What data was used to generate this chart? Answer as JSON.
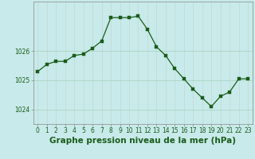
{
  "x": [
    0,
    1,
    2,
    3,
    4,
    5,
    6,
    7,
    8,
    9,
    10,
    11,
    12,
    13,
    14,
    15,
    16,
    17,
    18,
    19,
    20,
    21,
    22,
    23
  ],
  "y": [
    1025.3,
    1025.55,
    1025.65,
    1025.65,
    1025.85,
    1025.9,
    1026.1,
    1026.35,
    1027.15,
    1027.15,
    1027.15,
    1027.2,
    1026.75,
    1026.15,
    1025.85,
    1025.4,
    1025.05,
    1024.7,
    1024.4,
    1024.1,
    1024.45,
    1024.6,
    1025.05,
    1025.05
  ],
  "background_color": "#c8eaea",
  "line_color": "#1a5c1a",
  "marker_color": "#1a5c1a",
  "grid_color_h": "#b0d8c8",
  "grid_color_v": "#c0d8d0",
  "tick_label_color": "#1a5c1a",
  "xlabel": "Graphe pression niveau de la mer (hPa)",
  "yticks": [
    1024,
    1025,
    1026
  ],
  "ylim": [
    1023.5,
    1027.7
  ],
  "xlim": [
    -0.5,
    23.5
  ],
  "tick_fontsize": 5.5,
  "xlabel_fontsize": 7.5
}
